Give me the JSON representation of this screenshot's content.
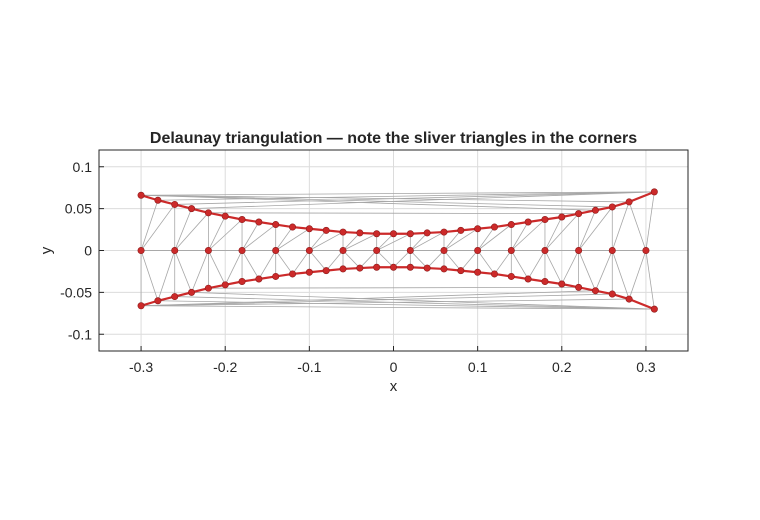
{
  "chart_data": {
    "type": "scatter",
    "title": "Delaunay triangulation — note the sliver triangles in the corners",
    "xlabel": "x",
    "ylabel": "y",
    "xlim": [
      -0.35,
      0.35
    ],
    "ylim": [
      -0.12,
      0.12
    ],
    "xticks": [
      -0.3,
      -0.2,
      -0.1,
      0,
      0.1,
      0.2,
      0.3
    ],
    "xtick_labels": [
      "-0.3",
      "-0.2",
      "-0.1",
      "0",
      "0.1",
      "0.2",
      "0.3"
    ],
    "yticks": [
      0.1,
      0.05,
      0,
      -0.05,
      -0.1
    ],
    "ytick_labels": [
      "0.1",
      "0.05",
      "0",
      "-0.05",
      "-0.1"
    ],
    "grid": true,
    "colors": {
      "boundary": "#cc2a2a",
      "mesh": "#a6a6a6",
      "grid": "#dcdcdc",
      "axes": "#262626"
    },
    "upper_boundary": {
      "x": [
        -0.3,
        -0.28,
        -0.26,
        -0.24,
        -0.22,
        -0.2,
        -0.18,
        -0.16,
        -0.14,
        -0.12,
        -0.1,
        -0.08,
        -0.06,
        -0.04,
        -0.02,
        0,
        0.02,
        0.04,
        0.06,
        0.08,
        0.1,
        0.12,
        0.14,
        0.16,
        0.18,
        0.2,
        0.22,
        0.24,
        0.26,
        0.28,
        0.31
      ],
      "y": [
        0.066,
        0.06,
        0.055,
        0.05,
        0.045,
        0.041,
        0.037,
        0.034,
        0.031,
        0.028,
        0.026,
        0.024,
        0.022,
        0.021,
        0.02,
        0.02,
        0.02,
        0.021,
        0.022,
        0.024,
        0.026,
        0.028,
        0.031,
        0.034,
        0.037,
        0.04,
        0.044,
        0.048,
        0.052,
        0.058,
        0.07
      ]
    },
    "lower_boundary": {
      "x": [
        -0.3,
        -0.28,
        -0.26,
        -0.24,
        -0.22,
        -0.2,
        -0.18,
        -0.16,
        -0.14,
        -0.12,
        -0.1,
        -0.08,
        -0.06,
        -0.04,
        -0.02,
        0,
        0.02,
        0.04,
        0.06,
        0.08,
        0.1,
        0.12,
        0.14,
        0.16,
        0.18,
        0.2,
        0.22,
        0.24,
        0.26,
        0.28,
        0.31
      ],
      "y": [
        -0.066,
        -0.06,
        -0.055,
        -0.05,
        -0.045,
        -0.041,
        -0.037,
        -0.034,
        -0.031,
        -0.028,
        -0.026,
        -0.024,
        -0.022,
        -0.021,
        -0.02,
        -0.02,
        -0.02,
        -0.021,
        -0.022,
        -0.024,
        -0.026,
        -0.028,
        -0.031,
        -0.034,
        -0.037,
        -0.04,
        -0.044,
        -0.048,
        -0.052,
        -0.058,
        -0.07
      ]
    },
    "centerline": {
      "x": [
        -0.3,
        -0.26,
        -0.22,
        -0.18,
        -0.14,
        -0.1,
        -0.06,
        -0.02,
        0.02,
        0.06,
        0.1,
        0.14,
        0.18,
        0.22,
        0.26,
        0.3
      ],
      "y": [
        0,
        0,
        0,
        0,
        0,
        0,
        0,
        0,
        0,
        0,
        0,
        0,
        0,
        0,
        0,
        0
      ]
    }
  }
}
